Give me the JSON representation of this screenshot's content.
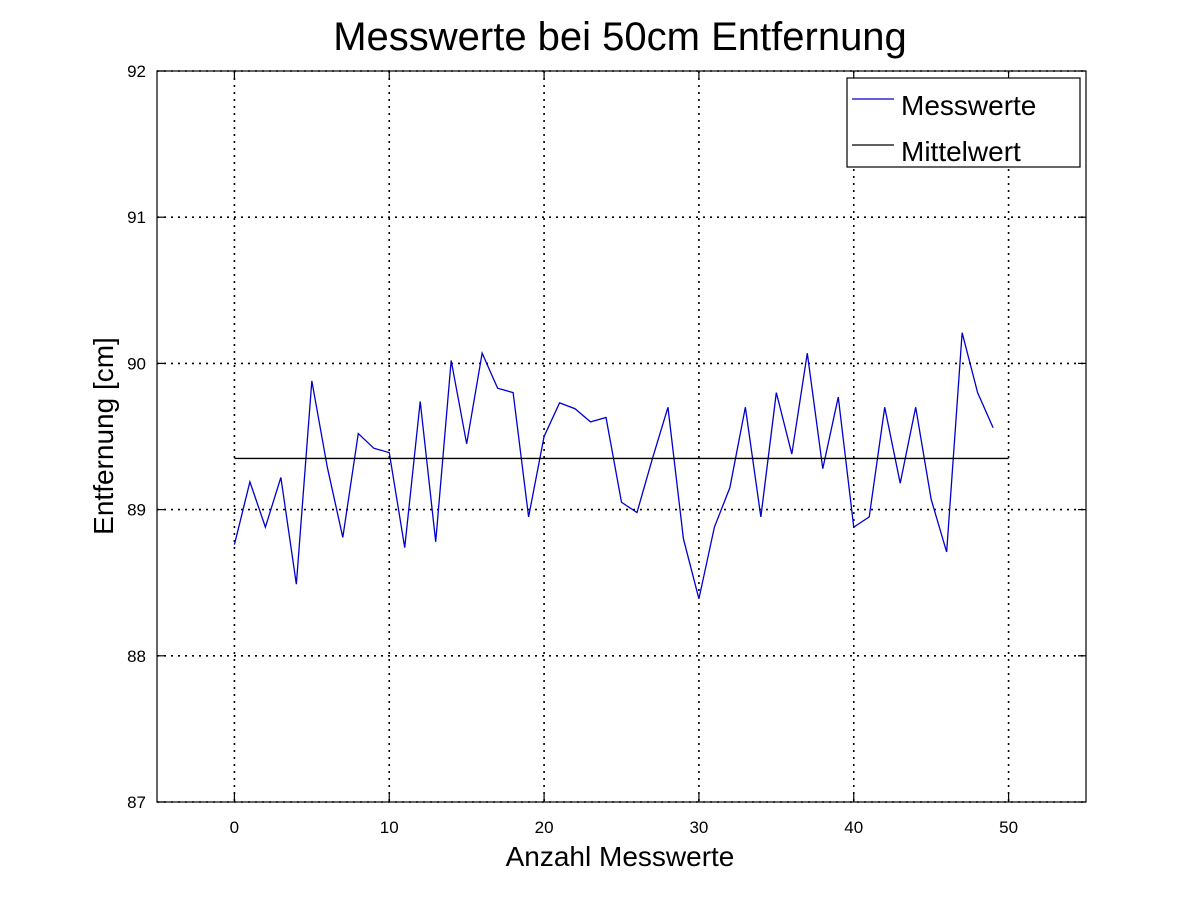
{
  "chart_data": {
    "type": "line",
    "title": "Messwerte bei 50cm Entfernung",
    "xlabel": "Anzahl Messwerte",
    "ylabel": "Entfernung [cm]",
    "xlim": [
      -5,
      55
    ],
    "ylim": [
      87,
      92
    ],
    "xticks": [
      0,
      10,
      20,
      30,
      40,
      50
    ],
    "yticks": [
      87,
      88,
      89,
      90,
      91,
      92
    ],
    "grid": true,
    "legend_position": "top-right",
    "series": [
      {
        "name": "Messwerte",
        "color": "#0000cc",
        "x": [
          0,
          1,
          2,
          3,
          4,
          5,
          6,
          7,
          8,
          9,
          10,
          11,
          12,
          13,
          14,
          15,
          16,
          17,
          18,
          19,
          20,
          21,
          22,
          23,
          24,
          25,
          26,
          27,
          28,
          29,
          30,
          31,
          32,
          33,
          34,
          35,
          36,
          37,
          38,
          39,
          40,
          41,
          42,
          43,
          44,
          45,
          46,
          47,
          48,
          49
        ],
        "values": [
          88.76,
          89.19,
          88.88,
          89.22,
          88.49,
          89.88,
          89.29,
          88.81,
          89.52,
          89.42,
          89.39,
          88.74,
          89.74,
          88.78,
          90.02,
          89.45,
          90.07,
          89.83,
          89.8,
          88.95,
          89.5,
          89.73,
          89.69,
          89.6,
          89.63,
          89.05,
          88.98,
          89.35,
          89.7,
          88.8,
          88.39,
          88.88,
          89.15,
          89.7,
          88.95,
          89.8,
          89.38,
          90.07,
          89.28,
          89.77,
          88.88,
          88.95,
          89.7,
          89.18,
          89.7,
          89.07,
          88.71,
          90.21,
          89.8,
          89.56
        ]
      },
      {
        "name": "Mittelwert",
        "color": "#000000",
        "x": [
          0,
          50
        ],
        "values": [
          89.35,
          89.35
        ]
      }
    ]
  }
}
